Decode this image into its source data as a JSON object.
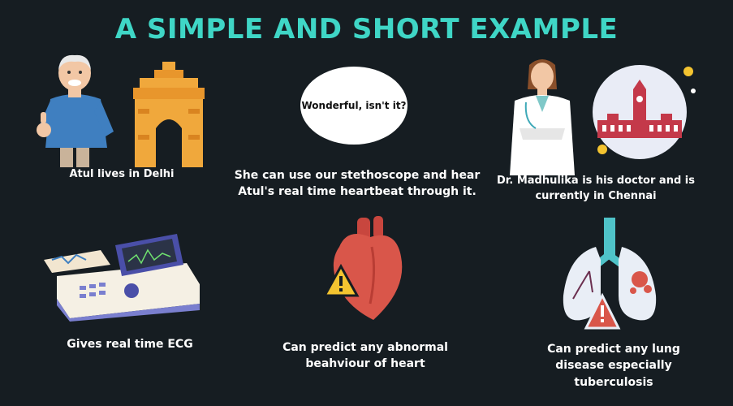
{
  "title": "A SIMPLE AND SHORT EXAMPLE",
  "speech_bubble": "Wonderful, isn't it?",
  "captions": {
    "atul": "Atul lives in Delhi",
    "stethoscope_line1": "She can use our stethoscope and hear",
    "stethoscope_line2": "Atul's real time heartbeat through it.",
    "doctor_line1": "Dr. Madhulika is his doctor and is",
    "doctor_line2": "currently in Chennai",
    "ecg": "Gives real time ECG",
    "heart_line1": "Can predict any abnormal",
    "heart_line2": "beahviour of heart",
    "lung_line1": "Can predict any lung",
    "lung_line2": "disease especially",
    "lung_line3": "tuberculosis"
  },
  "icons": [
    "old-man-thumbs-up",
    "india-gate",
    "speech-bubble",
    "female-doctor",
    "chennai-building",
    "ecg-machine",
    "heart-warning",
    "lungs-warning"
  ],
  "colors": {
    "background": "#161d22",
    "title": "#3fd6c6",
    "heart": "#d9564a",
    "warning": "#f4c430",
    "lungs": "#e9eef6",
    "india_gate": "#f0a83c"
  }
}
